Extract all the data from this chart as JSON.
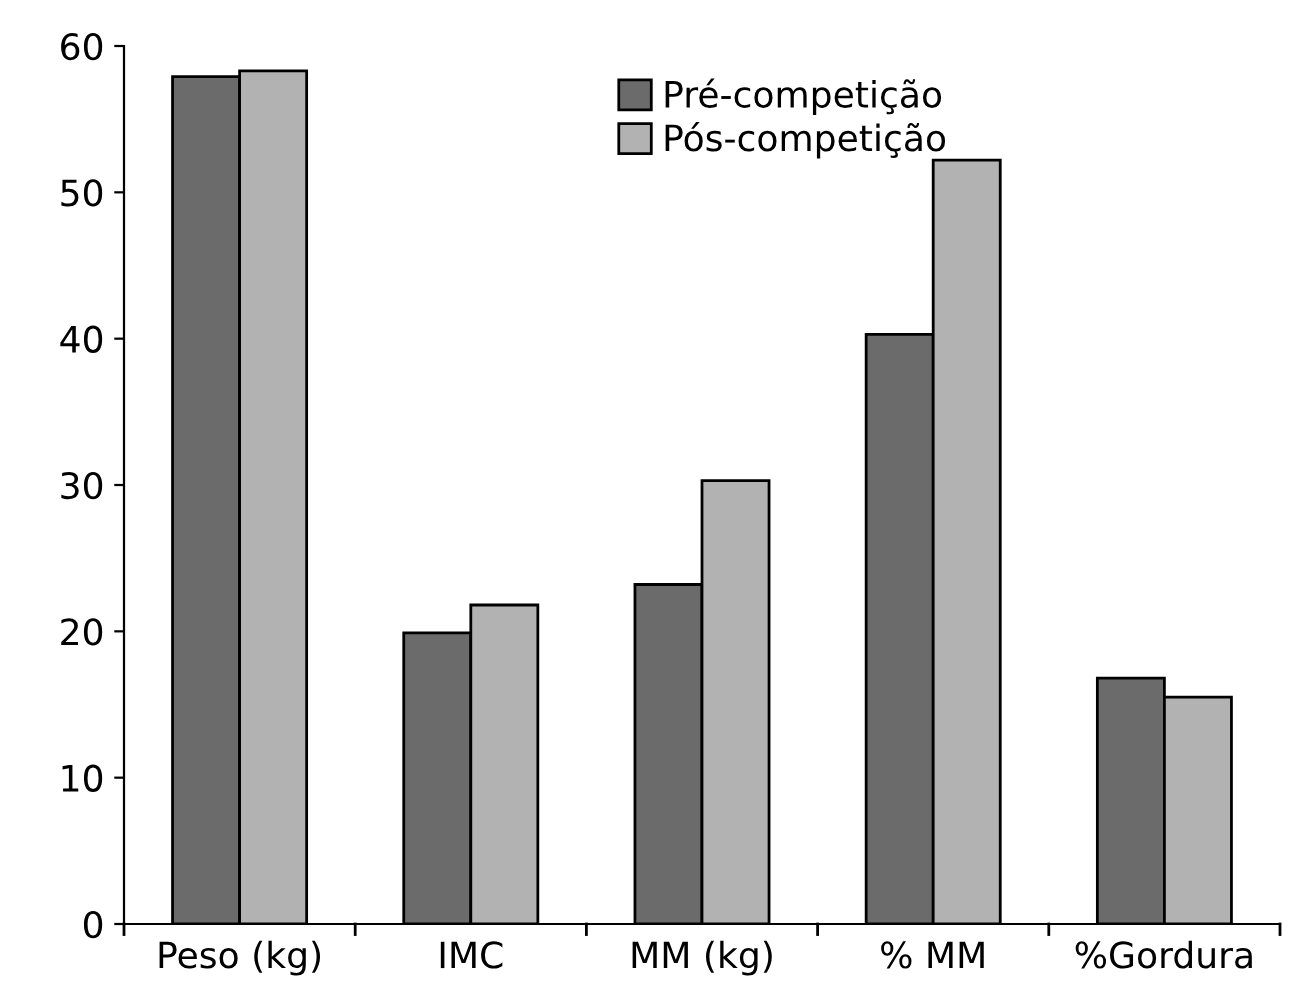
{
  "chart_data": {
    "type": "bar",
    "categories": [
      "Peso (kg)",
      "IMC",
      "MM (kg)",
      "% MM",
      "%Gordura"
    ],
    "series": [
      {
        "name": "Pré-competição",
        "color": "#6b6b6b",
        "values": [
          57.9,
          19.9,
          23.2,
          40.3,
          16.8
        ]
      },
      {
        "name": "Pós-competição",
        "color": "#b2b2b2",
        "values": [
          58.3,
          21.8,
          30.3,
          52.2,
          15.5
        ]
      }
    ],
    "ylim": [
      0,
      60
    ],
    "yticks": [
      0,
      10,
      20,
      30,
      40,
      50,
      60
    ],
    "grid": false,
    "legend": "top"
  }
}
